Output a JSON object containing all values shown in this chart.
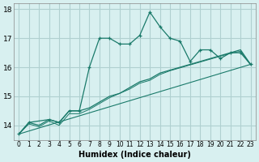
{
  "background_color": "#d8f0f0",
  "grid_color": "#b0d0d0",
  "line_color": "#1a7a6a",
  "xlabel": "Humidex (Indice chaleur)",
  "ylim": [
    13.5,
    18.2
  ],
  "xlim": [
    -0.5,
    23.5
  ],
  "yticks": [
    14,
    15,
    16,
    17,
    18
  ],
  "xticks": [
    0,
    1,
    2,
    3,
    4,
    5,
    6,
    7,
    8,
    9,
    10,
    11,
    12,
    13,
    14,
    15,
    16,
    17,
    18,
    19,
    20,
    21,
    22,
    23
  ],
  "series1_x": [
    0,
    1,
    3,
    4,
    5,
    6,
    7,
    8,
    9,
    10,
    11,
    12,
    13,
    14,
    15,
    16,
    17,
    18,
    19,
    20,
    21,
    22,
    23
  ],
  "series1_y": [
    13.7,
    14.1,
    14.2,
    14.1,
    14.5,
    14.5,
    16.0,
    17.0,
    17.0,
    16.8,
    16.8,
    17.1,
    17.9,
    17.4,
    17.0,
    16.9,
    16.2,
    16.6,
    16.6,
    16.3,
    16.5,
    16.5,
    16.1
  ],
  "series2_x": [
    0,
    1,
    2,
    3,
    4,
    5,
    6,
    7,
    8,
    9,
    10,
    11,
    12,
    13,
    14,
    15,
    16,
    17,
    18,
    19,
    20,
    21,
    22,
    23
  ],
  "series2_y": [
    13.7,
    14.1,
    14.0,
    14.2,
    14.1,
    14.5,
    14.5,
    14.6,
    14.8,
    15.0,
    15.1,
    15.3,
    15.5,
    15.6,
    15.8,
    15.9,
    16.0,
    16.1,
    16.2,
    16.3,
    16.4,
    16.5,
    16.6,
    16.1
  ],
  "series3_x": [
    0,
    1,
    2,
    3,
    4,
    5,
    6,
    7,
    8,
    9,
    10,
    11,
    12,
    13,
    14,
    15,
    16,
    17,
    18,
    19,
    20,
    21,
    22,
    23
  ],
  "series3_y": [
    13.7,
    14.05,
    13.95,
    14.15,
    14.0,
    14.4,
    14.4,
    14.55,
    14.75,
    14.95,
    15.1,
    15.25,
    15.45,
    15.55,
    15.75,
    15.88,
    15.98,
    16.08,
    16.18,
    16.28,
    16.38,
    16.48,
    16.55,
    16.08
  ],
  "series4_x": [
    0,
    23
  ],
  "series4_y": [
    13.7,
    16.1
  ]
}
